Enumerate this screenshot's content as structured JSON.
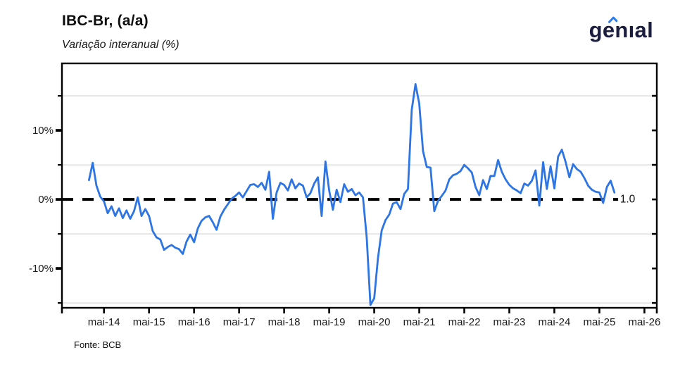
{
  "header": {
    "title": "IBC-Br, (a/a)",
    "subtitle": "Variação interanual (%)",
    "logo_text": "genıal"
  },
  "footer": {
    "source": "Fonte: BCB"
  },
  "colors": {
    "line": "#2D74E4",
    "zero_line": "#000000",
    "grid": "#DADADA",
    "axis": "#000000",
    "label": "#1A1A1A",
    "logo_navy": "#1B1D3F",
    "logo_accent": "#2E7BEA"
  },
  "chart_data": {
    "type": "line",
    "title": "IBC-Br, (a/a)",
    "subtitle": "Variação interanual (%)",
    "unit": "%",
    "frequency": "monthly",
    "start_month": "2014-01",
    "end_month": "2025-09",
    "grid": "horizontal-minor-only",
    "legend_position": "none",
    "ylim": [
      -15.7,
      19.7
    ],
    "y_ticks_labeled": [
      10,
      0,
      -10
    ],
    "y_tick_labels": [
      "10%",
      "0%",
      "-10%"
    ],
    "y_ticks_minor": [
      15,
      5,
      -5,
      -15
    ],
    "x_tick_labels": [
      "mai-14",
      "mai-15",
      "mai-16",
      "mai-17",
      "mai-18",
      "mai-19",
      "mai-20",
      "mai-21",
      "mai-22",
      "mai-23",
      "mai-24",
      "mai-25",
      "mai-26"
    ],
    "zero_line_style": "dashed-black",
    "end_label": "1.0",
    "values": [
      2.8,
      5.3,
      2.0,
      0.4,
      -0.3,
      -2.0,
      -1.0,
      -2.4,
      -1.3,
      -2.7,
      -1.6,
      -2.8,
      -1.7,
      0.3,
      -2.4,
      -1.4,
      -2.4,
      -4.6,
      -5.5,
      -5.8,
      -7.3,
      -6.9,
      -6.6,
      -7.0,
      -7.2,
      -7.9,
      -6.1,
      -5.1,
      -6.2,
      -4.2,
      -3.1,
      -2.6,
      -2.4,
      -3.3,
      -4.4,
      -2.5,
      -1.5,
      -0.7,
      0.1,
      0.5,
      1.0,
      0.3,
      1.2,
      2.1,
      2.2,
      1.8,
      2.4,
      1.4,
      4.0,
      -2.8,
      1.0,
      2.4,
      2.1,
      1.3,
      2.9,
      1.6,
      2.3,
      2.0,
      0.3,
      0.9,
      2.3,
      3.2,
      -2.4,
      5.5,
      1.3,
      -1.5,
      1.4,
      -0.4,
      2.2,
      1.1,
      1.5,
      0.6,
      1.0,
      0.3,
      -5.5,
      -15.3,
      -14.3,
      -8.5,
      -4.5,
      -3.0,
      -2.2,
      -0.6,
      -0.4,
      -1.4,
      0.8,
      1.5,
      13.0,
      16.7,
      13.9,
      7.0,
      4.7,
      4.6,
      -1.7,
      -0.2,
      0.5,
      1.3,
      2.9,
      3.5,
      3.7,
      4.1,
      5.0,
      4.5,
      3.9,
      1.8,
      0.6,
      2.8,
      1.5,
      3.4,
      3.4,
      5.7,
      4.0,
      2.9,
      2.1,
      1.6,
      1.3,
      0.9,
      2.3,
      2.0,
      2.7,
      4.2,
      -0.9,
      5.4,
      1.5,
      4.8,
      1.6,
      6.2,
      7.2,
      5.4,
      3.2,
      5.1,
      4.4,
      4.0,
      3.1,
      2.0,
      1.4,
      1.1,
      1.0,
      -0.5,
      1.8,
      2.7,
      1.0
    ]
  }
}
